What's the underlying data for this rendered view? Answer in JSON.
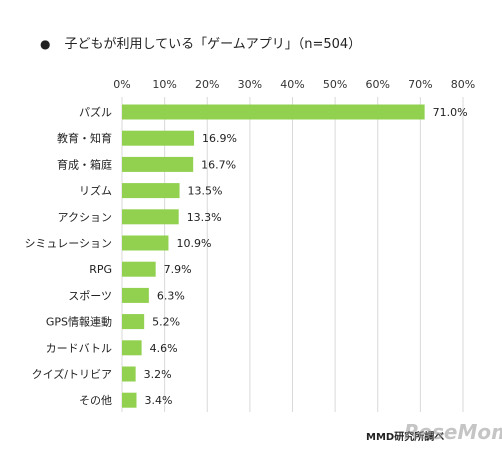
{
  "chart_data": {
    "type": "bar",
    "orientation": "horizontal",
    "title": "子どもが利用している「ゲームアプリ」（n=504）",
    "title_bullet": "●",
    "categories": [
      "パズル",
      "教育・知育",
      "育成・箱庭",
      "リズム",
      "アクション",
      "シミュレーション",
      "RPG",
      "スポーツ",
      "GPS情報連動",
      "カードバトル",
      "クイズ/トリビア",
      "その他"
    ],
    "values": [
      71.0,
      16.9,
      16.7,
      13.5,
      13.3,
      10.9,
      7.9,
      6.3,
      5.2,
      4.6,
      3.2,
      3.4
    ],
    "value_suffix": "%",
    "xticks": [
      "0%",
      "10%",
      "20%",
      "30%",
      "40%",
      "50%",
      "60%",
      "70%",
      "80%"
    ],
    "xlim": [
      0,
      80
    ],
    "grid": true,
    "bar_color": "#92d050",
    "grid_color": "#d9d9d9"
  },
  "source": "MMD研究所調べ",
  "watermark": "ReseMom"
}
